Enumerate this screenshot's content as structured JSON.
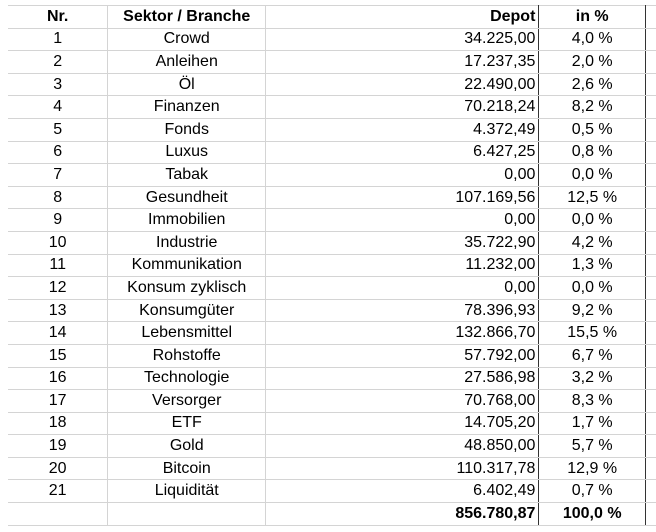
{
  "table": {
    "header": [
      "Nr.",
      "Sektor / Branche",
      "Depot",
      "in %"
    ],
    "rows": [
      [
        "1",
        "Crowd",
        "34.225,00",
        "4,0 %"
      ],
      [
        "2",
        "Anleihen",
        "17.237,35",
        "2,0 %"
      ],
      [
        "3",
        "Öl",
        "22.490,00",
        "2,6 %"
      ],
      [
        "4",
        "Finanzen",
        "70.218,24",
        "8,2 %"
      ],
      [
        "5",
        "Fonds",
        "4.372,49",
        "0,5 %"
      ],
      [
        "6",
        "Luxus",
        "6.427,25",
        "0,8 %"
      ],
      [
        "7",
        "Tabak",
        "0,00",
        "0,0 %"
      ],
      [
        "8",
        "Gesundheit",
        "107.169,56",
        "12,5 %"
      ],
      [
        "9",
        "Immobilien",
        "0,00",
        "0,0 %"
      ],
      [
        "10",
        "Industrie",
        "35.722,90",
        "4,2 %"
      ],
      [
        "11",
        "Kommunikation",
        "11.232,00",
        "1,3 %"
      ],
      [
        "12",
        "Konsum zyklisch",
        "0,00",
        "0,0 %"
      ],
      [
        "13",
        "Konsumgüter",
        "78.396,93",
        "9,2 %"
      ],
      [
        "14",
        "Lebensmittel",
        "132.866,70",
        "15,5 %"
      ],
      [
        "15",
        "Rohstoffe",
        "57.792,00",
        "6,7 %"
      ],
      [
        "16",
        "Technologie",
        "27.586,98",
        "3,2 %"
      ],
      [
        "17",
        "Versorger",
        "70.768,00",
        "8,3 %"
      ],
      [
        "18",
        "ETF",
        "14.705,20",
        "1,7 %"
      ],
      [
        "19",
        "Gold",
        "48.850,00",
        "5,7 %"
      ],
      [
        "20",
        "Bitcoin",
        "110.317,78",
        "12,9 %"
      ],
      [
        "21",
        "Liquidität",
        "6.402,49",
        "0,7 %"
      ]
    ],
    "total": {
      "depot": "856.780,87",
      "percent": "100,0 %"
    }
  }
}
